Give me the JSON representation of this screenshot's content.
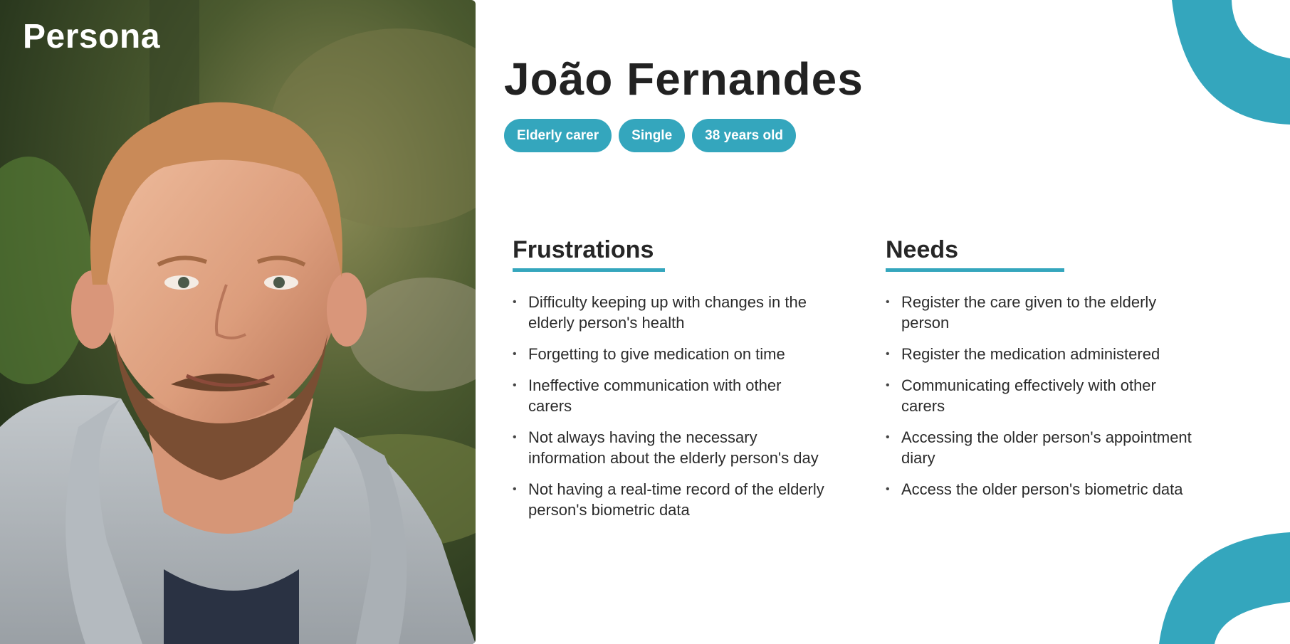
{
  "section_label": "Persona",
  "persona": {
    "name": "João Fernandes",
    "tags": [
      "Elderly carer",
      "Single",
      "38 years old"
    ]
  },
  "frustrations": {
    "title": "Frustrations",
    "items": [
      "Difficulty keeping up with changes in the elderly person's health",
      "Forgetting to give medication on time",
      "Ineffective communication with other carers",
      "Not always having the necessary information about the elderly person's day",
      "Not having a real-time record of the elderly person's biometric data"
    ]
  },
  "needs": {
    "title": "Needs",
    "items": [
      "Register the care given to the elderly person",
      "Register the medication administered",
      "Communicating effectively with other carers",
      "Accessing the older person's appointment diary",
      "Access the older person's biometric data"
    ]
  },
  "colors": {
    "accent": "#34a6bd",
    "text": "#222222",
    "background": "#ffffff"
  },
  "bullet_glyph": "•"
}
